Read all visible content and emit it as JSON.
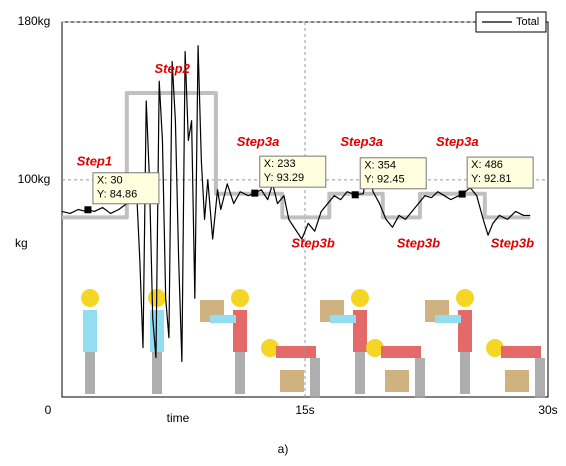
{
  "chart_data": {
    "type": "line",
    "x": [
      0,
      0.5,
      1,
      1.5,
      1.6,
      2,
      2.5,
      3,
      3.5,
      4,
      4.3,
      4.6,
      4.8,
      5,
      5.2,
      5.4,
      5.6,
      5.8,
      6,
      6.2,
      6.4,
      6.6,
      6.8,
      7,
      7.2,
      7.4,
      7.6,
      7.8,
      8,
      8.2,
      8.4,
      8.6,
      8.8,
      9,
      9.3,
      9.6,
      9.8,
      10.2,
      10.6,
      11,
      11.5,
      11.9,
      12.3,
      12.7,
      13,
      13.3,
      13.7,
      14,
      14.4,
      14.8,
      15.2,
      15.6,
      16,
      16.4,
      16.8,
      17.2,
      17.6,
      18.1,
      18.6,
      18.9,
      19.2,
      19.6,
      20,
      20.4,
      20.8,
      21.2,
      21.6,
      22,
      22.4,
      22.8,
      23.2,
      23.6,
      24,
      24.7,
      25.2,
      25.6,
      26,
      26.3,
      26.6,
      27,
      27.5,
      28,
      28.5,
      28.9
    ],
    "series": [
      {
        "name": "Total",
        "color": "#000000",
        "values": [
          84,
          83,
          85,
          84,
          84.86,
          84,
          86,
          83,
          85,
          88,
          92,
          95,
          60,
          15,
          140,
          100,
          30,
          10,
          150,
          120,
          40,
          20,
          160,
          130,
          60,
          8,
          165,
          120,
          130,
          40,
          168,
          110,
          80,
          100,
          70,
          95,
          85,
          98,
          88,
          94,
          92,
          93.29,
          95,
          90,
          98,
          88,
          92,
          80,
          75,
          70,
          78,
          74,
          84,
          88,
          92,
          90,
          94,
          92.45,
          93,
          108,
          94,
          88,
          80,
          76,
          82,
          80,
          84,
          88,
          92,
          91,
          94,
          92,
          90,
          92.81,
          96,
          92,
          80,
          72,
          78,
          82,
          80,
          84,
          82,
          82
        ]
      }
    ],
    "reference": {
      "color": "#c0c0c0",
      "x": [
        0,
        4,
        4,
        9.5,
        9.5,
        13.6,
        13.6,
        16.5,
        16.5,
        19.8,
        19.8,
        22.1,
        22.1,
        26.1,
        26.1,
        28.9
      ],
      "values": [
        81,
        81,
        144,
        144,
        93,
        93,
        81,
        81,
        93,
        93,
        81,
        81,
        93,
        93,
        81,
        81
      ]
    },
    "xlim": [
      0,
      30
    ],
    "ylim": [
      -10,
      180
    ],
    "xticks": [
      0,
      {
        "value": 15,
        "label": "15s"
      },
      {
        "value": 30,
        "label": "30s"
      }
    ],
    "yticks": [
      {
        "value": 100,
        "label": "100kg"
      },
      {
        "value": 180,
        "label": "180kg"
      }
    ],
    "grid": true,
    "legend": "upper right",
    "xlabel": "time",
    "ylabel": "kg",
    "caption": "a)",
    "annotations": [
      {
        "text": "Step1",
        "x": 2.0,
        "y": 109
      },
      {
        "text": "Step2",
        "x": 6.8,
        "y": 156
      },
      {
        "text": "Step3a",
        "x": 12.1,
        "y": 119
      },
      {
        "text": "Step3a",
        "x": 18.5,
        "y": 119
      },
      {
        "text": "Step3a",
        "x": 24.4,
        "y": 119
      },
      {
        "text": "Step3b",
        "x": 15.5,
        "y": 67.6
      },
      {
        "text": "Step3b",
        "x": 22.0,
        "y": 67.6
      },
      {
        "text": "Step3b",
        "x": 27.8,
        "y": 67.6
      }
    ],
    "datatips": [
      {
        "x": 1.6,
        "index": 30,
        "y": 84.86,
        "value_labels": [
          "X: 30",
          "Y: 84.86"
        ]
      },
      {
        "x": 11.9,
        "index": 233,
        "y": 93.29,
        "value_labels": [
          "X: 233",
          "Y: 93.29"
        ]
      },
      {
        "x": 18.1,
        "index": 354,
        "y": 92.45,
        "value_labels": [
          "X: 354",
          "Y: 92.45"
        ]
      },
      {
        "x": 24.7,
        "index": 486,
        "y": 92.81,
        "value_labels": [
          "X: 486",
          "Y: 92.81"
        ]
      }
    ]
  }
}
